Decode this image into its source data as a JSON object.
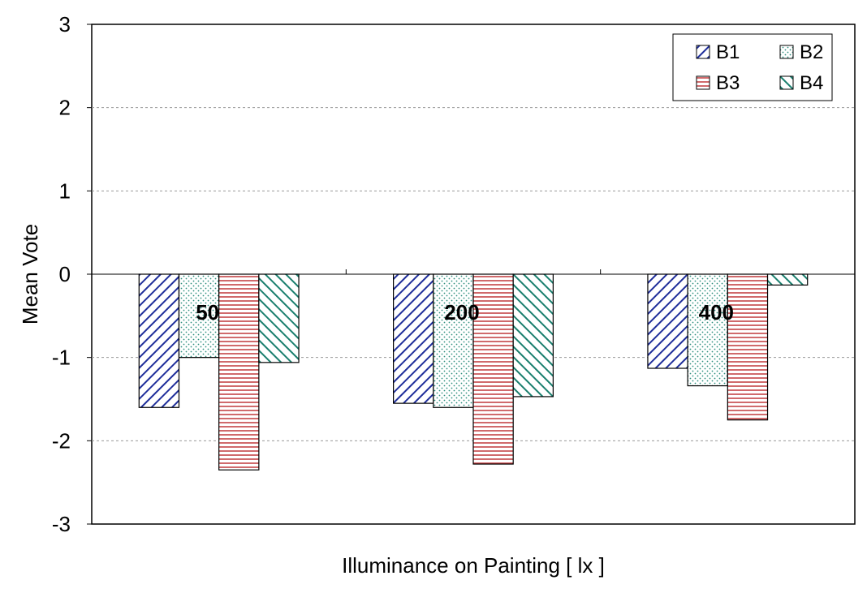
{
  "chart_data": {
    "type": "bar",
    "categories": [
      "50",
      "200",
      "400"
    ],
    "series": [
      {
        "name": "B1",
        "values": [
          -1.6,
          -1.55,
          -1.13
        ]
      },
      {
        "name": "B2",
        "values": [
          -1.0,
          -1.6,
          -1.34
        ]
      },
      {
        "name": "B3",
        "values": [
          -2.35,
          -2.28,
          -1.75
        ]
      },
      {
        "name": "B4",
        "values": [
          -1.06,
          -1.47,
          -0.13
        ]
      }
    ],
    "xlabel": "Illuminance on Painting [ lx ]",
    "ylabel": "Mean  Vote",
    "ylim": [
      -3,
      3
    ],
    "yticks": [
      "3",
      "2",
      "1",
      "0",
      "-1",
      "-2",
      "-3"
    ],
    "grid": "horizontal dashed",
    "legend_position": "top-right",
    "category_labels_inside_bars": true,
    "series_patterns": [
      "diagonal-hatch-blue",
      "dots-teal",
      "horizontal-stripes-red",
      "diagonal-hatch-teal"
    ],
    "colors": {
      "B1": "#1f2e9a",
      "B2": "#2e8f7e",
      "B3": "#c0393b",
      "B4": "#1a7f6e"
    }
  }
}
